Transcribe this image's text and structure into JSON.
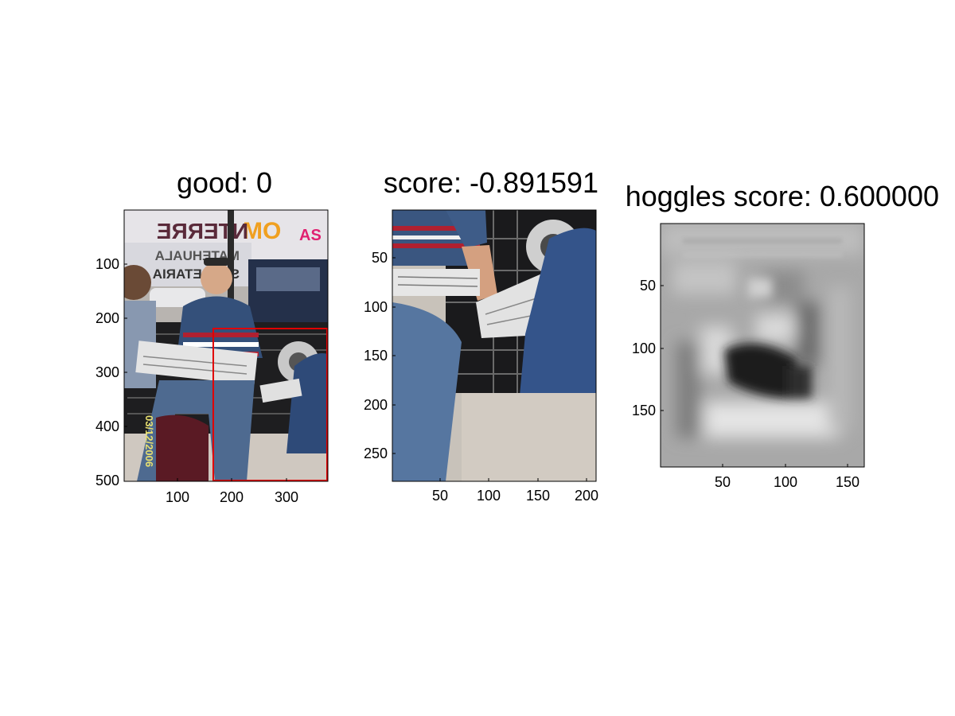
{
  "panels": [
    {
      "title": "good: 0",
      "scene_text": [
        "MO",
        "NTERRE",
        "AS",
        "MATEHUALA",
        "SECRETARIA"
      ],
      "date_stamp": "03/12/2006",
      "x_ticks": [
        "100",
        "200",
        "300"
      ],
      "y_ticks": [
        "100",
        "200",
        "300",
        "400",
        "500"
      ],
      "box_color": "#e00000"
    },
    {
      "title": "score: -0.891591",
      "x_ticks": [
        "50",
        "100",
        "150",
        "200"
      ],
      "y_ticks": [
        "50",
        "100",
        "150",
        "200",
        "250"
      ]
    },
    {
      "title": "hoggles score: 0.600000",
      "x_ticks": [
        "50",
        "100",
        "150"
      ],
      "y_ticks": [
        "50",
        "100",
        "150"
      ]
    }
  ]
}
